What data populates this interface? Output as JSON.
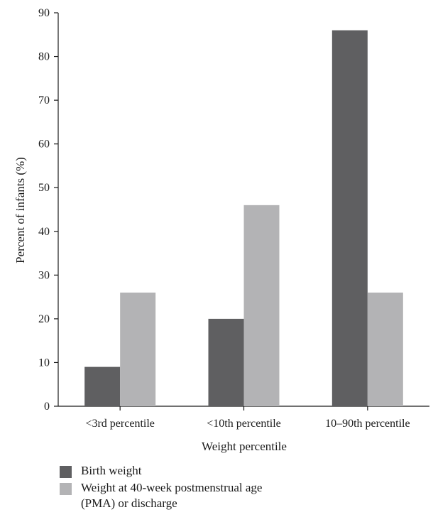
{
  "chart_data": {
    "type": "bar",
    "categories": [
      "<3rd percentile",
      "<10th percentile",
      "10–90th percentile"
    ],
    "series": [
      {
        "name": "Birth weight",
        "values": [
          9,
          20,
          86
        ],
        "color": "#5f5f61"
      },
      {
        "name": "Weight at 40-week postmenstrual age (PMA) or discharge",
        "values": [
          26,
          46,
          26
        ],
        "color": "#b3b3b5"
      }
    ],
    "title": "",
    "xlabel": "Weight percentile",
    "ylabel": "Percent of infants (%)",
    "ylim": [
      0,
      90
    ],
    "yticks": [
      0,
      10,
      20,
      30,
      40,
      50,
      60,
      70,
      80,
      90
    ],
    "grid": false,
    "legend_position": "bottom-left"
  }
}
